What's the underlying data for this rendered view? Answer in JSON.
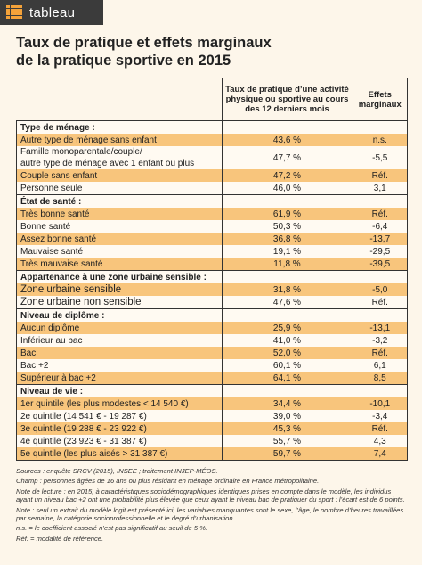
{
  "header": {
    "label": "tableau",
    "title": [
      "Taux de pratique et effets marginaux",
      "de la pratique sportive en 2015"
    ]
  },
  "table": {
    "columns": [
      "Taux de pratique d’une activité physique ou sportive au cours des 12 derniers mois",
      "Effets marginaux"
    ],
    "sections": [
      {
        "title": "Type de ménage :",
        "rows": [
          [
            [
              "Autre type de ménage sans enfant"
            ],
            "43,6 %",
            "n.s."
          ],
          [
            [
              "Famille monoparentale/couple/",
              "autre type de ménage avec 1 enfant ou plus"
            ],
            "47,7 %",
            "-5,5"
          ],
          [
            [
              "Couple sans enfant"
            ],
            "47,2 %",
            "Réf."
          ],
          [
            [
              "Personne seule"
            ],
            "46,0 %",
            "3,1"
          ]
        ]
      },
      {
        "title": "État de santé :",
        "rows": [
          [
            [
              "Très bonne santé"
            ],
            "61,9 %",
            "Réf."
          ],
          [
            [
              "Bonne santé"
            ],
            "50,3 %",
            "-6,4"
          ],
          [
            [
              "Assez bonne santé"
            ],
            "36,8 %",
            "-13,7"
          ],
          [
            [
              "Mauvaise santé"
            ],
            "19,1 %",
            "-29,5"
          ],
          [
            [
              "Très mauvaise santé"
            ],
            "11,8 %",
            "-39,5"
          ]
        ]
      },
      {
        "title": "Appartenance à une zone urbaine sensible :",
        "rows": [
          [
            [
              "Zone urbaine sensible"
            ],
            "31,8 %",
            "-5,0"
          ],
          [
            [
              "Zone urbaine non sensible"
            ],
            "47,6 %",
            "Réf."
          ]
        ]
      },
      {
        "title": "Niveau de diplôme :",
        "rows": [
          [
            [
              "Aucun diplôme"
            ],
            "25,9 %",
            "-13,1"
          ],
          [
            [
              "Inférieur au bac"
            ],
            "41,0 %",
            "-3,2"
          ],
          [
            [
              "Bac"
            ],
            "52,0 %",
            "Réf."
          ],
          [
            [
              "Bac +2"
            ],
            "60,1 %",
            "6,1"
          ],
          [
            [
              "Supérieur à bac +2"
            ],
            "64,1 %",
            "8,5"
          ]
        ]
      },
      {
        "title": "Niveau de vie :",
        "rows": [
          [
            [
              "1er quintile (les plus modestes < 14 540 €)"
            ],
            "34,4 %",
            "-10,1"
          ],
          [
            [
              "2e quintile (14 541 € - 19 287 €)"
            ],
            "39,0 %",
            "-3,4"
          ],
          [
            [
              "3e quintile (19 288 € - 23 922 €)"
            ],
            "45,3 %",
            "Réf."
          ],
          [
            [
              "4e quintile (23 923 € - 31 387 €)"
            ],
            "55,7 %",
            "4,3"
          ],
          [
            [
              "5e quintile (les plus aisés > 31 387 €)"
            ],
            "59,7 %",
            "7,4"
          ]
        ]
      }
    ]
  },
  "notes": [
    "Sources : enquête SRCV (2015), INSEE ; traitement INJEP-MÉOS.",
    "Champ : personnes âgées de 16 ans ou plus résidant en ménage ordinaire en France métropolitaine.",
    "Note de lecture : en 2015, à caractéristiques sociodémographiques identiques prises en compte dans le modèle, les individus ayant un niveau bac +2 ont une probabilité plus élevée que ceux ayant le niveau bac de pratiquer du sport : l’écart est de 6 points.",
    "Note : seul un extrait du modèle logit est présenté ici, les variables manquantes sont le sexe, l’âge, le nombre d’heures travaillées par semaine, la catégorie socioprofessionnelle et le degré d’urbanisation.",
    "n.s. = le coefficient associé n’est pas significatif au seuil de 5 %.",
    "Réf. = modalité de référence."
  ]
}
